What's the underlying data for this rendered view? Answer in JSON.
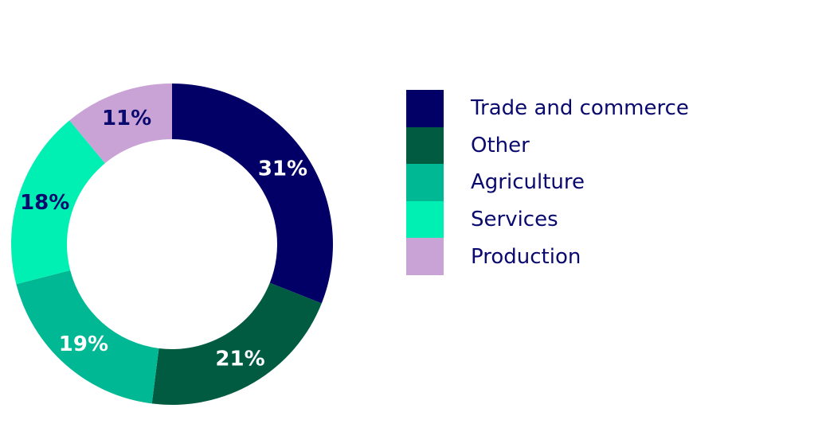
{
  "chart_data": {
    "type": "pie",
    "subtype": "donut",
    "segments": [
      {
        "name": "Trade and commerce",
        "value": 31,
        "label": "31%",
        "color": "#020066",
        "label_color": "#ffffff"
      },
      {
        "name": "Other",
        "value": 21,
        "label": "21%",
        "color": "#005b41",
        "label_color": "#ffffff"
      },
      {
        "name": "Agriculture",
        "value": 19,
        "label": "19%",
        "color": "#00b893",
        "label_color": "#ffffff"
      },
      {
        "name": "Services",
        "value": 18,
        "label": "18%",
        "color": "#00f0b4",
        "label_color": "#0a0a6e"
      },
      {
        "name": "Production",
        "value": 11,
        "label": "11%",
        "color": "#c9a3d6",
        "label_color": "#0a0a6e"
      }
    ],
    "start": "top",
    "direction": "clockwise",
    "legend_position": "right"
  },
  "legend": {
    "items": [
      {
        "label": "Trade and commerce",
        "color": "#020066"
      },
      {
        "label": "Other",
        "color": "#005b41"
      },
      {
        "label": "Agriculture",
        "color": "#00b893"
      },
      {
        "label": "Services",
        "color": "#00f0b4"
      },
      {
        "label": "Production",
        "color": "#c9a3d6"
      }
    ]
  }
}
